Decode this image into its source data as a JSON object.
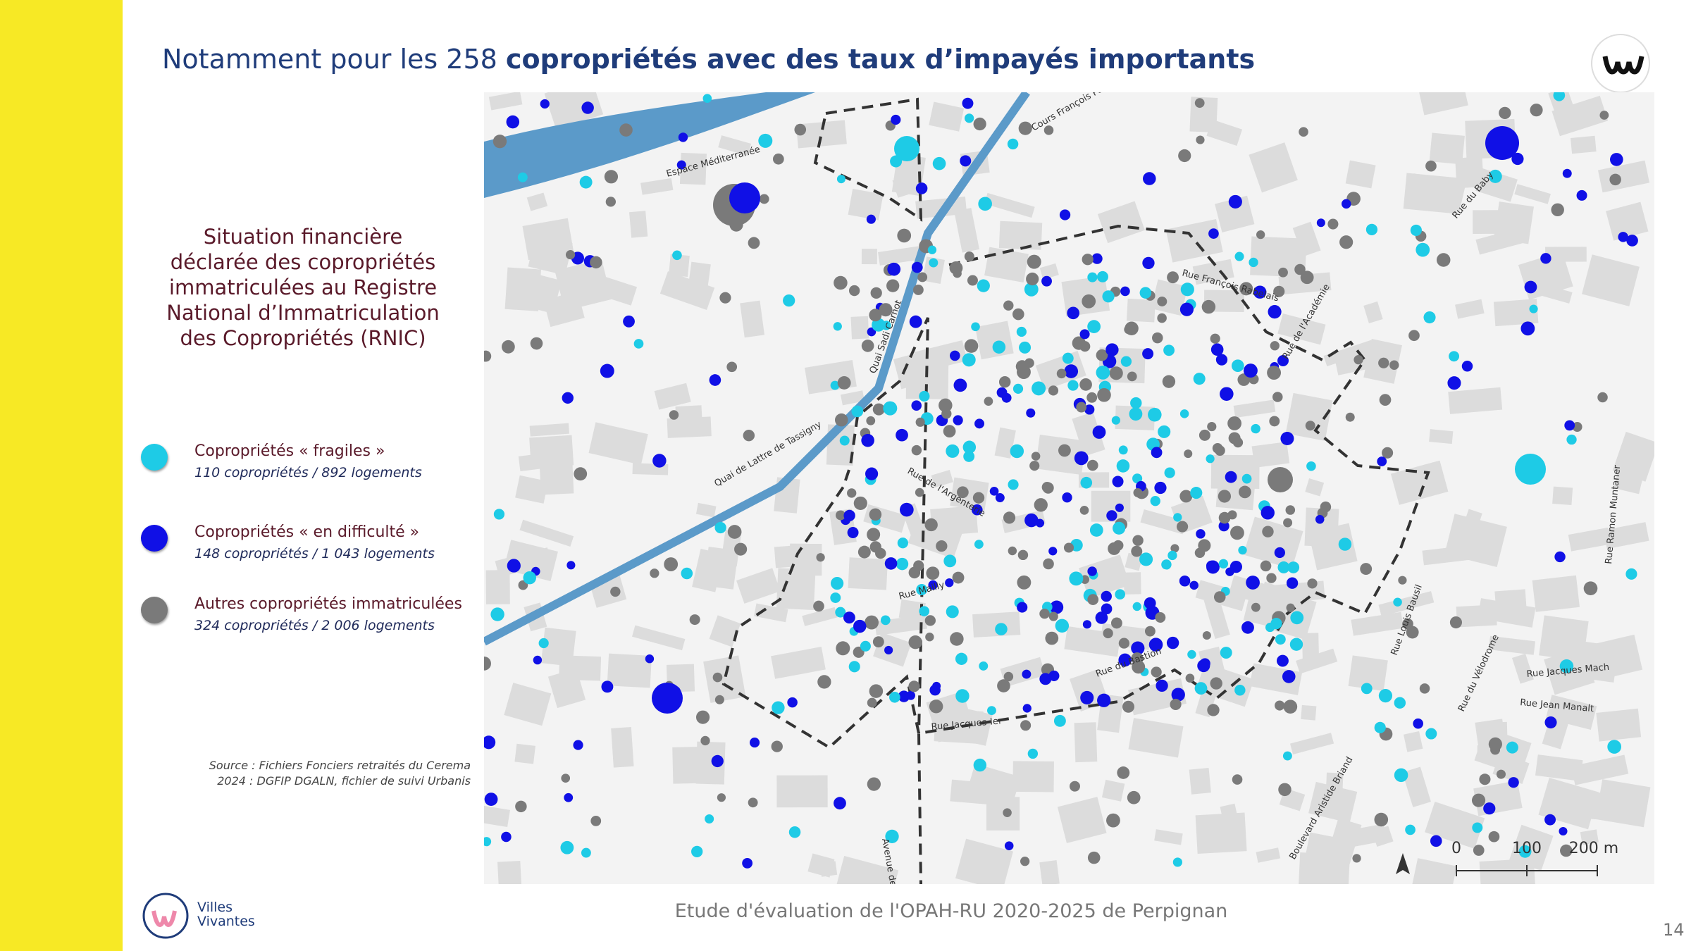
{
  "header": {
    "title_prefix": "Notamment pour les 258 ",
    "title_bold": "copropriétés avec des taux d’impayés importants"
  },
  "legend": {
    "title_lines": [
      "Situation financière",
      "déclarée des copropriétés",
      "immatriculées au Registre",
      "National d’Immatriculation",
      "des Copropriétés (RNIC)"
    ],
    "items": [
      {
        "label": "Copropriétés « fragiles »",
        "detail": "110 copropriétés / 892 logements",
        "color": "#1ecbe6"
      },
      {
        "label": "Copropriétés « en difficulté »",
        "detail": "148 copropriétés / 1 043 logements",
        "color": "#1010e6"
      },
      {
        "label": "Autres copropriétés immatriculées",
        "detail": "324 copropriétés / 2 006 logements",
        "color": "#7a7a7a"
      }
    ]
  },
  "source_lines": [
    "Source : Fichiers Fonciers retraités du Cerema",
    "2024 : DGFIP DGALN, fichier de suivi Urbanis"
  ],
  "map": {
    "streets": [
      "Espace Méditerranée",
      "Cours François Palmarole",
      "Rue François Rabelais",
      "Rue de l'Académie",
      "Quai Sadi Carnot",
      "Quai de Lattre de Tassigny",
      "Rue de l'Argenterie",
      "Rue Mailly",
      "Rue Jacques-Ier",
      "Rue du Bastion",
      "Rue Louis Bausil",
      "Rue du Vélodrome",
      "Rue Jacques Mach",
      "Rue Jean Manalt",
      "Rue Ramon Muntaner",
      "Rue du Baby",
      "Avenue des Baléares",
      "Boulevard Aristide Briand"
    ],
    "scale": [
      "0",
      "100",
      "200 m"
    ]
  },
  "footer": {
    "text": "Etude d'évaluation de l'OPAH-RU 2020-2025 de Perpignan",
    "page": "14",
    "logo_lines": [
      "Villes",
      "Vivantes"
    ]
  }
}
